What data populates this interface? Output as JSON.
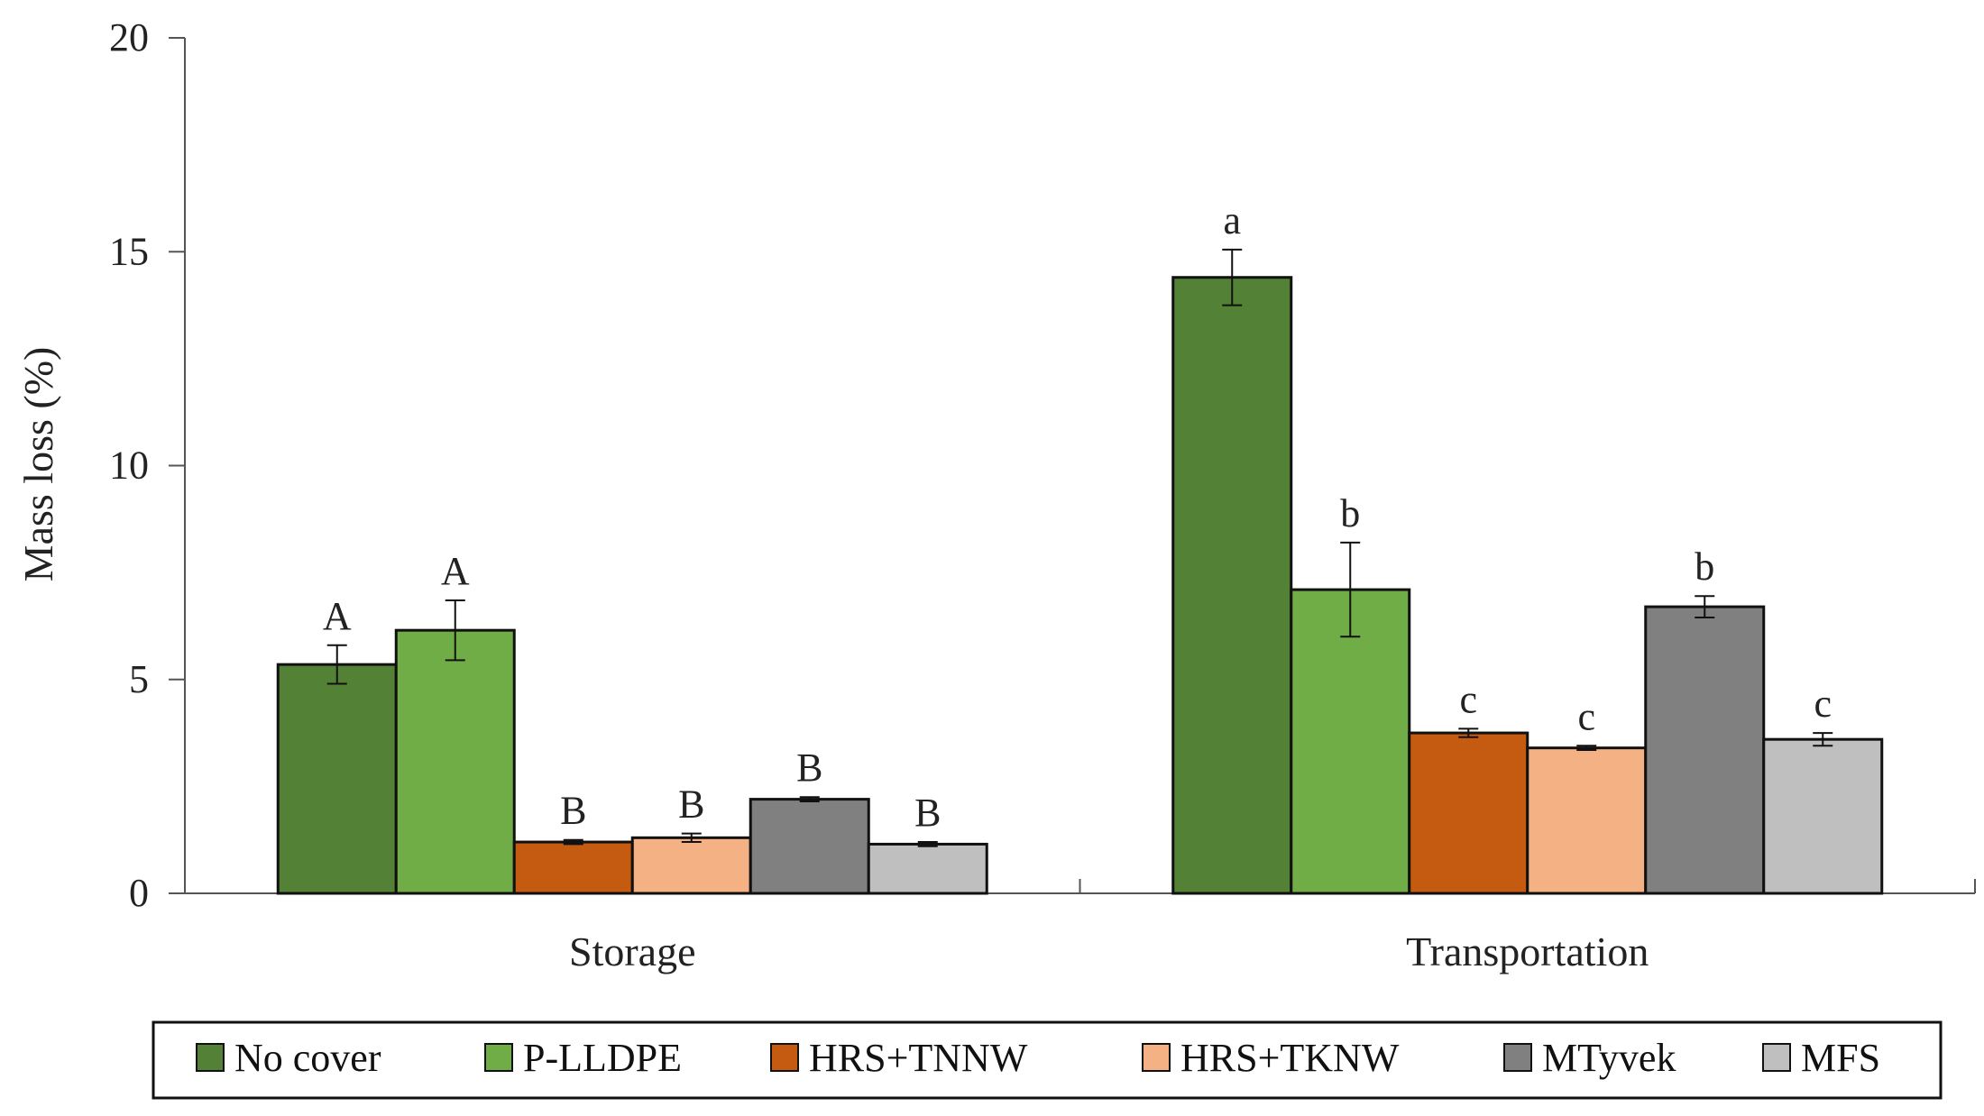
{
  "chart_data": {
    "type": "bar",
    "title": "",
    "xlabel": "",
    "ylabel": "Mass loss (%)",
    "ylim": [
      0,
      20
    ],
    "yticks": [
      0,
      5,
      10,
      15,
      20
    ],
    "categories": [
      "Storage",
      "Transportation"
    ],
    "series": [
      {
        "name": "No cover",
        "color": "#538135",
        "values": [
          5.35,
          14.4
        ],
        "errors": [
          0.45,
          0.65
        ],
        "letters": [
          "A",
          "a"
        ]
      },
      {
        "name": "P-LLDPE",
        "color": "#70AD47",
        "values": [
          6.15,
          7.1
        ],
        "errors": [
          0.7,
          1.1
        ],
        "letters": [
          "A",
          "b"
        ]
      },
      {
        "name": "HRS+TNNW",
        "color": "#C55A11",
        "values": [
          1.2,
          3.75
        ],
        "errors": [
          0.05,
          0.1
        ],
        "letters": [
          "B",
          "c"
        ]
      },
      {
        "name": "HRS+TKNW",
        "color": "#F4B183",
        "values": [
          1.3,
          3.4
        ],
        "errors": [
          0.1,
          0.05
        ],
        "letters": [
          "B",
          "c"
        ]
      },
      {
        "name": "MTyvek",
        "color": "#808080",
        "values": [
          2.2,
          6.7
        ],
        "errors": [
          0.05,
          0.25
        ],
        "letters": [
          "B",
          "b"
        ]
      },
      {
        "name": "MFS",
        "color": "#BFBFBF",
        "values": [
          1.15,
          3.6
        ],
        "errors": [
          0.05,
          0.15
        ],
        "letters": [
          "B",
          "c"
        ]
      }
    ],
    "legend": "bottom",
    "grid": false
  }
}
